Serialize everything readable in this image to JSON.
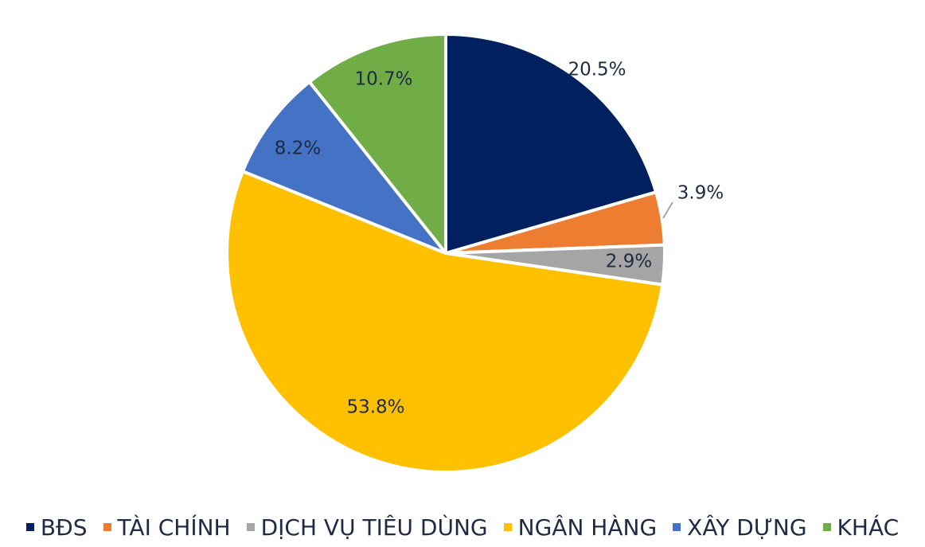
{
  "chart_data": {
    "type": "pie",
    "title": "",
    "slices": [
      {
        "label": "BĐS",
        "value": 20.5,
        "value_label": "20.5%",
        "color": "#002060"
      },
      {
        "label": "TÀI CHÍNH",
        "value": 3.9,
        "value_label": "3.9%",
        "color": "#ED7D31"
      },
      {
        "label": "DỊCH VỤ TIÊU DÙNG",
        "value": 2.9,
        "value_label": "2.9%",
        "color": "#A5A5A5"
      },
      {
        "label": "NGÂN HÀNG",
        "value": 53.8,
        "value_label": "53.8%",
        "color": "#FFC000"
      },
      {
        "label": "XÂY DỰNG",
        "value": 8.2,
        "value_label": "8.2%",
        "color": "#4472C4"
      },
      {
        "label": "KHÁC",
        "value": 10.7,
        "value_label": "10.7%",
        "color": "#70AD47"
      }
    ],
    "legend_position": "bottom"
  }
}
